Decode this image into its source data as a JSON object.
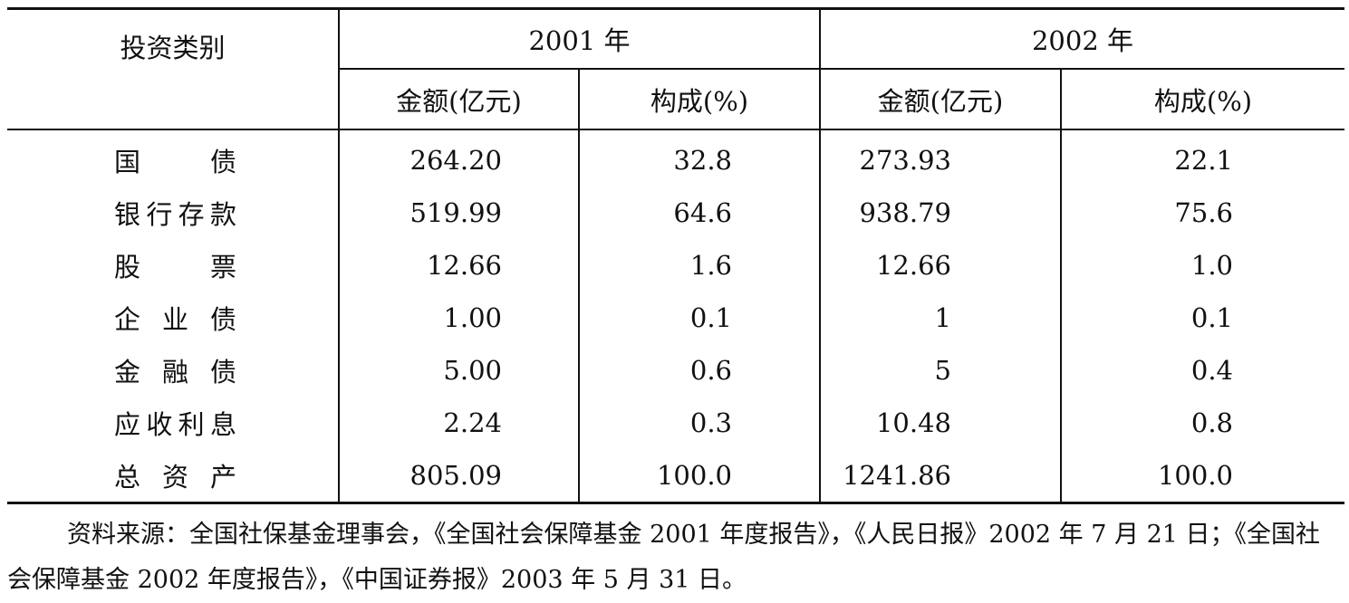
{
  "table": {
    "category_header": "投资类别",
    "year_headers": [
      "2001 年",
      "2002 年"
    ],
    "sub_headers": [
      "金额(亿元)",
      "构成(%)",
      "金额(亿元)",
      "构成(%)"
    ],
    "rows": [
      {
        "category": "国债",
        "a2001": "264.20",
        "p2001": "32.8",
        "a2002": "273.93",
        "p2002": "22.1"
      },
      {
        "category": "银行存款",
        "a2001": "519.99",
        "p2001": "64.6",
        "a2002": "938.79",
        "p2002": "75.6"
      },
      {
        "category": "股票",
        "a2001": "12.66",
        "p2001": "1.6",
        "a2002": "12.66",
        "p2002": "1.0"
      },
      {
        "category": "企业债",
        "a2001": "1.00",
        "p2001": "0.1",
        "a2002": "1",
        "p2002": "0.1"
      },
      {
        "category": "金融债",
        "a2001": "5.00",
        "p2001": "0.6",
        "a2002": "5",
        "p2002": "0.4"
      },
      {
        "category": "应收利息",
        "a2001": "2.24",
        "p2001": "0.3",
        "a2002": "10.48",
        "p2002": "0.8"
      },
      {
        "category": "总资产",
        "a2001": "805.09",
        "p2001": "100.0",
        "a2002": "1241.86",
        "p2002": "100.0"
      }
    ]
  },
  "source_note": "资料来源：全国社保基金理事会，《全国社会保障基金 2001 年度报告》，《人民日报》2002 年 7 月 21 日；《全国社会保障基金 2002 年度报告》，《中国证券报》2003 年 5 月 31 日。"
}
